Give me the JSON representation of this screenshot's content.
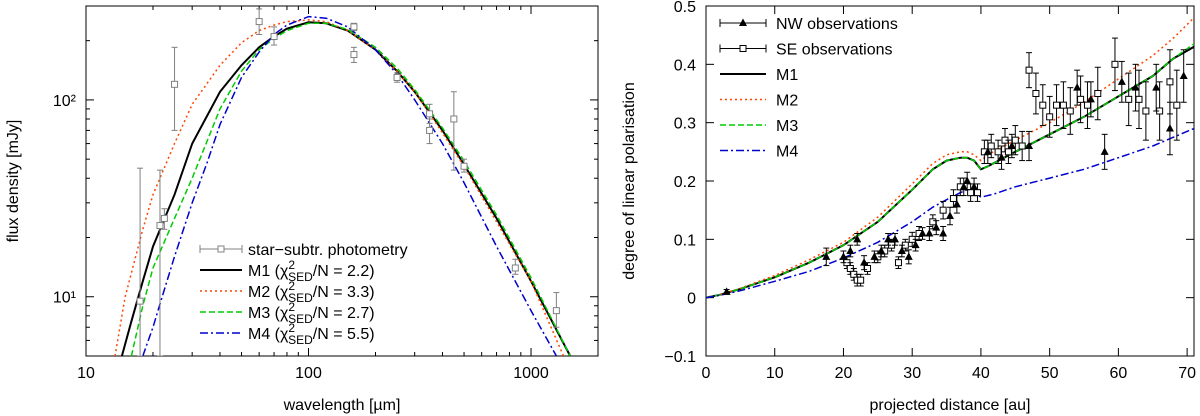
{
  "chart_data": [
    {
      "type": "line",
      "xlabel": "wavelength [µm]",
      "ylabel": "flux density [mJy]",
      "xscale": "log",
      "yscale": "log",
      "xlim": [
        10,
        2000
      ],
      "ylim": [
        5,
        300
      ],
      "x_ticks": [
        10,
        100,
        1000
      ],
      "x_tick_labels": [
        "10",
        "100",
        "1000"
      ],
      "y_ticks": [
        10,
        100
      ],
      "y_tick_labels": [
        "10¹",
        "10²"
      ],
      "grid": false,
      "legend_position": "bottom-center",
      "legend": [
        {
          "label": "star−subtr. photometry",
          "main": "star−subtr. photometry",
          "chi": ""
        },
        {
          "label": "M1 (χ²SED/N = 2.2)",
          "main": "M1 (",
          "chi": "/N = 2.2)"
        },
        {
          "label": "M2 (χ²SED/N = 3.3)",
          "main": "M2 (",
          "chi": "/N = 3.3)"
        },
        {
          "label": "M3 (χ²SED/N = 2.7)",
          "main": "M3 (",
          "chi": "/N = 2.7)"
        },
        {
          "label": "M4 (χ²SED/N = 5.5)",
          "main": "M4 (",
          "chi": "/N = 5.5)"
        }
      ],
      "chi_symbol": "χ",
      "chi_sup": "2",
      "chi_sub": "SED",
      "colors": {
        "photometry": "#808080",
        "M1": "#000000",
        "M2": "#ff4500",
        "M3": "#00cc00",
        "M4": "#0000cc"
      },
      "photometry": [
        {
          "x": 17.5,
          "y": 9.5,
          "lo": 5,
          "hi": 45
        },
        {
          "x": 21.5,
          "y": 23,
          "lo": 5,
          "hi": 44
        },
        {
          "x": 22.5,
          "y": 25,
          "lo": 22,
          "hi": 28
        },
        {
          "x": 25,
          "y": 120,
          "lo": 70,
          "hi": 185
        },
        {
          "x": 60,
          "y": 250,
          "lo": 215,
          "hi": 290
        },
        {
          "x": 70,
          "y": 210,
          "lo": 190,
          "hi": 235
        },
        {
          "x": 160,
          "y": 235,
          "lo": 225,
          "hi": 245
        },
        {
          "x": 160,
          "y": 170,
          "lo": 155,
          "hi": 185
        },
        {
          "x": 250,
          "y": 130,
          "lo": 123,
          "hi": 137
        },
        {
          "x": 350,
          "y": 85,
          "lo": 76,
          "hi": 95
        },
        {
          "x": 350,
          "y": 70,
          "lo": 60,
          "hi": 80
        },
        {
          "x": 450,
          "y": 80,
          "lo": 44,
          "hi": 110
        },
        {
          "x": 500,
          "y": 46,
          "lo": 43,
          "hi": 50
        },
        {
          "x": 850,
          "y": 14,
          "lo": 13,
          "hi": 15.5
        },
        {
          "x": 1300,
          "y": 8.5,
          "lo": 7,
          "hi": 10.5
        }
      ],
      "series": [
        {
          "key": "M1",
          "style": "solid",
          "x": [
            14.5,
            16,
            18,
            20,
            25,
            30,
            40,
            50,
            60,
            70,
            80,
            100,
            120,
            150,
            200,
            250,
            300,
            400,
            500,
            700,
            1000,
            1500
          ],
          "y": [
            5,
            7.5,
            12,
            18,
            33,
            60,
            110,
            150,
            185,
            210,
            230,
            248,
            245,
            225,
            180,
            140,
            110,
            70,
            47,
            25,
            12,
            5
          ]
        },
        {
          "key": "M2",
          "style": "dotted",
          "x": [
            13.5,
            15,
            18,
            20,
            25,
            30,
            40,
            50,
            60,
            70,
            80,
            100,
            120,
            150,
            200,
            250,
            300,
            400,
            500,
            700,
            1000,
            1400
          ],
          "y": [
            5,
            10,
            22,
            33,
            60,
            95,
            150,
            195,
            225,
            240,
            250,
            255,
            250,
            225,
            180,
            140,
            110,
            68,
            46,
            24,
            12,
            5
          ]
        },
        {
          "key": "M3",
          "style": "dashed",
          "x": [
            16,
            18,
            20,
            25,
            30,
            40,
            50,
            60,
            70,
            80,
            100,
            120,
            150,
            200,
            250,
            300,
            400,
            500,
            700,
            1000,
            1500
          ],
          "y": [
            5,
            9,
            14,
            25,
            40,
            90,
            140,
            180,
            205,
            225,
            245,
            245,
            228,
            185,
            145,
            113,
            72,
            49,
            26,
            12.5,
            5
          ]
        },
        {
          "key": "M4",
          "style": "dashdot",
          "x": [
            18,
            20,
            22,
            25,
            30,
            35,
            40,
            50,
            60,
            70,
            80,
            100,
            120,
            150,
            200,
            250,
            300,
            400,
            500,
            700,
            1000,
            1300
          ],
          "y": [
            5,
            7,
            10,
            16,
            30,
            48,
            75,
            130,
            175,
            215,
            240,
            265,
            260,
            235,
            180,
            135,
            100,
            60,
            38,
            18,
            8.5,
            5
          ]
        }
      ]
    },
    {
      "type": "line",
      "xlabel": "projected distance [au]",
      "ylabel": "degree of linear polarisation",
      "xlim": [
        0,
        71
      ],
      "ylim": [
        -0.1,
        0.5
      ],
      "x_ticks": [
        0,
        10,
        20,
        30,
        40,
        50,
        60,
        70
      ],
      "x_tick_labels": [
        "0",
        "10",
        "20",
        "30",
        "40",
        "50",
        "60",
        "70"
      ],
      "y_ticks": [
        -0.1,
        0,
        0.1,
        0.2,
        0.3,
        0.4,
        0.5
      ],
      "y_tick_labels": [
        "−0.1",
        "0",
        "0.1",
        "0.2",
        "0.3",
        "0.4",
        "0.5"
      ],
      "grid": false,
      "legend_position": "top-left",
      "legend": [
        "NW observations",
        "SE observations",
        "M1",
        "M2",
        "M3",
        "M4"
      ],
      "colors": {
        "obs": "#000000",
        "M1": "#000000",
        "M2": "#ff4500",
        "M3": "#00cc00",
        "M4": "#0000cc"
      },
      "nw_observations": [
        {
          "x": 3,
          "y": 0.01,
          "e": 0.004
        },
        {
          "x": 17.5,
          "y": 0.07,
          "e": 0.015
        },
        {
          "x": 20,
          "y": 0.07,
          "e": 0.01
        },
        {
          "x": 21,
          "y": 0.08,
          "e": 0.01
        },
        {
          "x": 22,
          "y": 0.1,
          "e": 0.01
        },
        {
          "x": 23,
          "y": 0.06,
          "e": 0.012
        },
        {
          "x": 24.5,
          "y": 0.07,
          "e": 0.01
        },
        {
          "x": 25.5,
          "y": 0.08,
          "e": 0.01
        },
        {
          "x": 26.5,
          "y": 0.1,
          "e": 0.01
        },
        {
          "x": 27.5,
          "y": 0.1,
          "e": 0.01
        },
        {
          "x": 28.5,
          "y": 0.08,
          "e": 0.01
        },
        {
          "x": 29.5,
          "y": 0.07,
          "e": 0.012
        },
        {
          "x": 30.5,
          "y": 0.09,
          "e": 0.01
        },
        {
          "x": 31.5,
          "y": 0.11,
          "e": 0.01
        },
        {
          "x": 32.5,
          "y": 0.11,
          "e": 0.012
        },
        {
          "x": 33.5,
          "y": 0.12,
          "e": 0.012
        },
        {
          "x": 34.5,
          "y": 0.11,
          "e": 0.012
        },
        {
          "x": 35.5,
          "y": 0.14,
          "e": 0.015
        },
        {
          "x": 36.5,
          "y": 0.16,
          "e": 0.015
        },
        {
          "x": 37.5,
          "y": 0.19,
          "e": 0.015
        },
        {
          "x": 38,
          "y": 0.2,
          "e": 0.015
        },
        {
          "x": 39,
          "y": 0.19,
          "e": 0.015
        },
        {
          "x": 41,
          "y": 0.25,
          "e": 0.02
        },
        {
          "x": 43,
          "y": 0.24,
          "e": 0.02
        },
        {
          "x": 44.5,
          "y": 0.26,
          "e": 0.02
        },
        {
          "x": 47,
          "y": 0.26,
          "e": 0.025
        },
        {
          "x": 54,
          "y": 0.36,
          "e": 0.03
        },
        {
          "x": 56,
          "y": 0.34,
          "e": 0.03
        },
        {
          "x": 58,
          "y": 0.25,
          "e": 0.03
        },
        {
          "x": 60.5,
          "y": 0.37,
          "e": 0.035
        },
        {
          "x": 62.5,
          "y": 0.36,
          "e": 0.04
        },
        {
          "x": 65.5,
          "y": 0.36,
          "e": 0.04
        },
        {
          "x": 67.5,
          "y": 0.29,
          "e": 0.045
        },
        {
          "x": 69.5,
          "y": 0.38,
          "e": 0.045
        }
      ],
      "se_observations": [
        {
          "x": 20.5,
          "y": 0.06,
          "e": 0.01
        },
        {
          "x": 21,
          "y": 0.05,
          "e": 0.01
        },
        {
          "x": 21.5,
          "y": 0.04,
          "e": 0.01
        },
        {
          "x": 22,
          "y": 0.03,
          "e": 0.01
        },
        {
          "x": 22.5,
          "y": 0.03,
          "e": 0.01
        },
        {
          "x": 23.5,
          "y": 0.05,
          "e": 0.01
        },
        {
          "x": 25,
          "y": 0.07,
          "e": 0.01
        },
        {
          "x": 26,
          "y": 0.08,
          "e": 0.01
        },
        {
          "x": 27,
          "y": 0.09,
          "e": 0.01
        },
        {
          "x": 28,
          "y": 0.06,
          "e": 0.01
        },
        {
          "x": 29,
          "y": 0.09,
          "e": 0.01
        },
        {
          "x": 30,
          "y": 0.1,
          "e": 0.012
        },
        {
          "x": 31,
          "y": 0.11,
          "e": 0.012
        },
        {
          "x": 33,
          "y": 0.13,
          "e": 0.012
        },
        {
          "x": 34.5,
          "y": 0.15,
          "e": 0.015
        },
        {
          "x": 36,
          "y": 0.17,
          "e": 0.015
        },
        {
          "x": 37,
          "y": 0.19,
          "e": 0.015
        },
        {
          "x": 38.5,
          "y": 0.18,
          "e": 0.015
        },
        {
          "x": 39.5,
          "y": 0.18,
          "e": 0.015
        },
        {
          "x": 40.5,
          "y": 0.25,
          "e": 0.02
        },
        {
          "x": 41.5,
          "y": 0.26,
          "e": 0.02
        },
        {
          "x": 42.5,
          "y": 0.25,
          "e": 0.02
        },
        {
          "x": 43.5,
          "y": 0.27,
          "e": 0.02
        },
        {
          "x": 44,
          "y": 0.25,
          "e": 0.02
        },
        {
          "x": 45,
          "y": 0.27,
          "e": 0.025
        },
        {
          "x": 46,
          "y": 0.26,
          "e": 0.025
        },
        {
          "x": 47,
          "y": 0.39,
          "e": 0.03
        },
        {
          "x": 48,
          "y": 0.35,
          "e": 0.035
        },
        {
          "x": 49,
          "y": 0.33,
          "e": 0.035
        },
        {
          "x": 50,
          "y": 0.31,
          "e": 0.035
        },
        {
          "x": 51,
          "y": 0.33,
          "e": 0.035
        },
        {
          "x": 52,
          "y": 0.33,
          "e": 0.04
        },
        {
          "x": 53,
          "y": 0.32,
          "e": 0.04
        },
        {
          "x": 54.5,
          "y": 0.34,
          "e": 0.04
        },
        {
          "x": 55.5,
          "y": 0.33,
          "e": 0.04
        },
        {
          "x": 57,
          "y": 0.35,
          "e": 0.045
        },
        {
          "x": 59.5,
          "y": 0.4,
          "e": 0.045
        },
        {
          "x": 61.5,
          "y": 0.34,
          "e": 0.045
        },
        {
          "x": 63,
          "y": 0.34,
          "e": 0.05
        },
        {
          "x": 64,
          "y": 0.32,
          "e": 0.05
        },
        {
          "x": 66,
          "y": 0.32,
          "e": 0.05
        },
        {
          "x": 67.5,
          "y": 0.37,
          "e": 0.055
        },
        {
          "x": 68.5,
          "y": 0.33,
          "e": 0.06
        }
      ],
      "series": [
        {
          "key": "M1",
          "style": "solid",
          "x": [
            0,
            2,
            5,
            10,
            15,
            20,
            25,
            30,
            33,
            35,
            37,
            38,
            39,
            40,
            41,
            45,
            50,
            55,
            60,
            65,
            68,
            71
          ],
          "y": [
            0,
            0.005,
            0.015,
            0.035,
            0.06,
            0.09,
            0.13,
            0.185,
            0.22,
            0.235,
            0.24,
            0.24,
            0.235,
            0.22,
            0.225,
            0.25,
            0.28,
            0.31,
            0.345,
            0.38,
            0.41,
            0.43
          ]
        },
        {
          "key": "M2",
          "style": "dotted",
          "x": [
            0,
            2,
            5,
            10,
            15,
            20,
            25,
            30,
            33,
            35,
            37,
            38,
            39,
            40,
            41,
            45,
            50,
            55,
            60,
            65,
            68,
            71
          ],
          "y": [
            0,
            0.005,
            0.016,
            0.038,
            0.065,
            0.095,
            0.138,
            0.195,
            0.23,
            0.245,
            0.25,
            0.25,
            0.245,
            0.235,
            0.245,
            0.27,
            0.3,
            0.335,
            0.375,
            0.415,
            0.445,
            0.48
          ]
        },
        {
          "key": "M3",
          "style": "dashed",
          "x": [
            0,
            2,
            5,
            10,
            15,
            20,
            25,
            30,
            33,
            35,
            37,
            38,
            39,
            40,
            41,
            45,
            50,
            55,
            60,
            65,
            68,
            71
          ],
          "y": [
            0,
            0.005,
            0.015,
            0.035,
            0.06,
            0.09,
            0.13,
            0.185,
            0.22,
            0.235,
            0.24,
            0.24,
            0.235,
            0.22,
            0.225,
            0.25,
            0.28,
            0.31,
            0.345,
            0.38,
            0.41,
            0.435
          ]
        },
        {
          "key": "M4",
          "style": "dashdot",
          "x": [
            0,
            2,
            5,
            10,
            15,
            20,
            25,
            30,
            33,
            35,
            37,
            38,
            39,
            40,
            42,
            45,
            50,
            55,
            60,
            65,
            71
          ],
          "y": [
            0,
            0.004,
            0.012,
            0.028,
            0.045,
            0.068,
            0.095,
            0.13,
            0.155,
            0.168,
            0.18,
            0.185,
            0.182,
            0.172,
            0.178,
            0.19,
            0.205,
            0.22,
            0.24,
            0.26,
            0.29
          ]
        }
      ]
    }
  ]
}
